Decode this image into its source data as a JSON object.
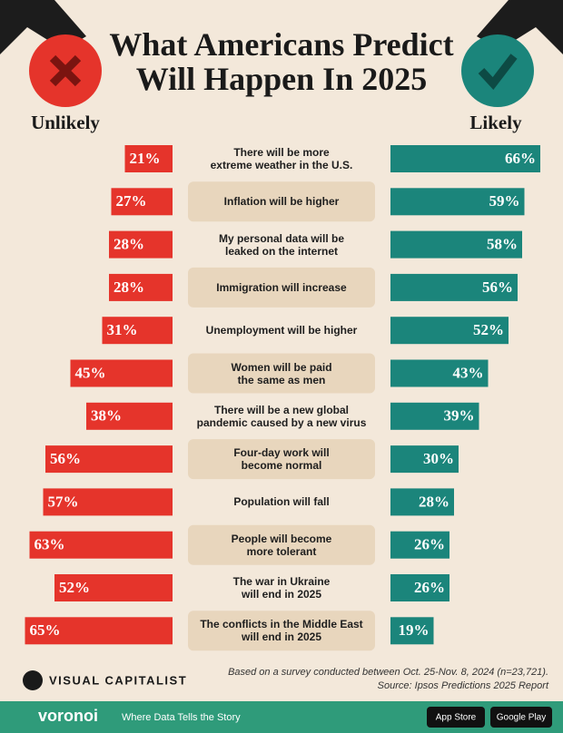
{
  "chart_data": {
    "type": "diverging-bar",
    "title": "What Americans Predict\nWill Happen In 2025",
    "categories": [
      "There will be more\nextreme  weather in the U.S.",
      "Inflation will be higher",
      "My personal data will be\nleaked on the internet",
      "Immigration will increase",
      "Unemployment will be higher",
      "Women will be paid\nthe same as men",
      "There will be a new global\npandemic caused by a new virus",
      "Four-day work will\nbecome normal",
      "Population will fall",
      "People will become\nmore tolerant",
      "The war in Ukraine\nwill end in 2025",
      "The conflicts in the Middle East\nwill end in 2025"
    ],
    "series": [
      {
        "name": "Unlikely",
        "color": "#e5342b",
        "values": [
          21,
          27,
          28,
          28,
          31,
          45,
          38,
          56,
          57,
          63,
          52,
          65
        ],
        "value_labels": [
          "21%",
          "27%",
          "28%",
          "28%",
          "31%",
          "45%",
          "38%",
          "56%",
          "57%",
          "63%",
          "52%",
          "65%"
        ]
      },
      {
        "name": "Likely",
        "color": "#1b857b",
        "values": [
          66,
          59,
          58,
          56,
          52,
          43,
          39,
          30,
          28,
          26,
          26,
          19
        ],
        "value_labels": [
          "66%",
          "59%",
          "58%",
          "56%",
          "52%",
          "43%",
          "39%",
          "30%",
          "28%",
          "26%",
          "26%",
          "19%"
        ]
      }
    ],
    "note": "Based on a survey conducted between Oct. 25-Nov. 8, 2024 (n=23,721).",
    "source": "Source: Ipsos Predictions 2025 Report",
    "brand": "VISUAL CAPITALIST",
    "footer_brand": "voronoi",
    "footer_tagline": "Where Data Tells the Story",
    "badges": [
      "App Store",
      "Google Play"
    ]
  }
}
